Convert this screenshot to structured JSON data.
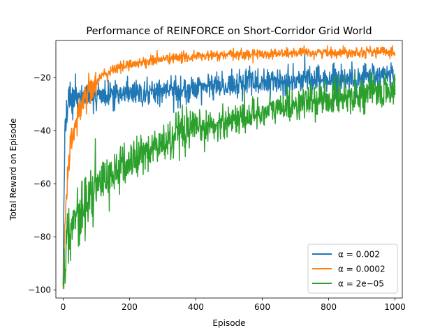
{
  "chart_data": {
    "type": "line",
    "title": "Performance of REINFORCE on Short-Corridor Grid World",
    "xlabel": "Episode",
    "ylabel": "Total Reward on Episode",
    "xlim": [
      -22,
      1022
    ],
    "ylim": [
      -103,
      -6
    ],
    "xticks": [
      0,
      200,
      400,
      600,
      800,
      1000
    ],
    "yticks": [
      -100,
      -80,
      -60,
      -40,
      -20
    ],
    "xtick_labels": [
      "0",
      "200",
      "400",
      "600",
      "800",
      "1000"
    ],
    "ytick_labels": [
      "−100",
      "−80",
      "−60",
      "−40",
      "−20"
    ],
    "grid": false,
    "legend_position": "lower-right",
    "series": [
      {
        "name": "α = 0.002",
        "color": "#1f77b4",
        "episodes": [
          0,
          3,
          5,
          10,
          15,
          20,
          30,
          40,
          60,
          80,
          100,
          150,
          200,
          300,
          400,
          500,
          600,
          700,
          800,
          900,
          1000
        ],
        "mean_reward": [
          -98,
          -65,
          -42,
          -35,
          -31,
          -29,
          -28,
          -27,
          -27,
          -27,
          -26.5,
          -26,
          -26,
          -25,
          -24,
          -23,
          -21.5,
          -21,
          -20.5,
          -20,
          -19
        ]
      },
      {
        "name": "α = 0.0002",
        "color": "#ff7f0e",
        "episodes": [
          0,
          5,
          10,
          20,
          30,
          50,
          75,
          100,
          150,
          200,
          300,
          400,
          500,
          600,
          700,
          800,
          900,
          1000
        ],
        "mean_reward": [
          -98,
          -75,
          -63,
          -48,
          -40,
          -32,
          -25,
          -21,
          -17,
          -15,
          -13,
          -12,
          -11.5,
          -11,
          -10.8,
          -10.5,
          -10.3,
          -10.2
        ]
      },
      {
        "name": "α = 2e−05",
        "color": "#2ca02c",
        "episodes": [
          0,
          5,
          10,
          20,
          40,
          60,
          80,
          100,
          150,
          200,
          250,
          300,
          350,
          400,
          450,
          500,
          600,
          700,
          800,
          900,
          1000
        ],
        "mean_reward": [
          -98,
          -88,
          -80,
          -77,
          -73,
          -69,
          -66,
          -61,
          -56,
          -52,
          -48,
          -45,
          -42,
          -40,
          -38,
          -36,
          -33,
          -30,
          -28,
          -26,
          -25
        ]
      }
    ]
  }
}
